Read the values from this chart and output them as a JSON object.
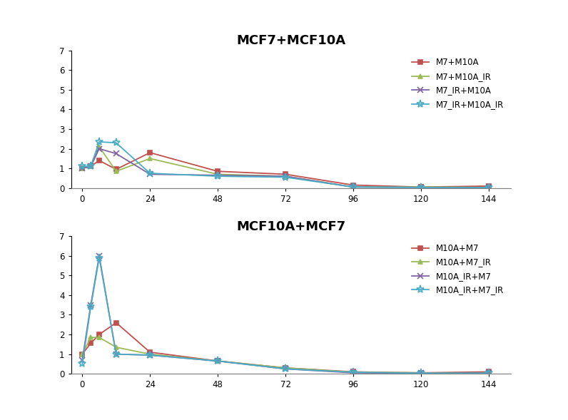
{
  "x": [
    0,
    3,
    6,
    12,
    24,
    48,
    72,
    96,
    120,
    144
  ],
  "top_title": "MCF7+MCF10A",
  "bottom_title": "MCF10A+MCF7",
  "top": {
    "M7+M10A": [
      1.0,
      1.1,
      1.4,
      0.95,
      1.8,
      0.85,
      0.7,
      0.15,
      0.05,
      0.1
    ],
    "M7+M10A_IR": [
      1.0,
      1.1,
      2.1,
      0.85,
      1.5,
      0.7,
      0.6,
      0.05,
      0.05,
      0.03
    ],
    "M7_IR+M10A": [
      1.0,
      1.1,
      2.0,
      1.75,
      0.7,
      0.65,
      0.6,
      0.05,
      0.03,
      0.02
    ],
    "M7_IR+M10A_IR": [
      1.1,
      1.1,
      2.35,
      2.3,
      0.75,
      0.6,
      0.55,
      0.05,
      0.03,
      0.02
    ]
  },
  "bottom": {
    "M10A+M7": [
      1.0,
      1.55,
      2.0,
      2.6,
      1.1,
      0.65,
      0.3,
      0.1,
      0.05,
      0.1
    ],
    "M10A+M7_IR": [
      1.0,
      1.85,
      1.85,
      1.35,
      1.0,
      0.65,
      0.3,
      0.08,
      0.05,
      0.03
    ],
    "M10A_IR+M7": [
      0.7,
      3.5,
      6.0,
      1.0,
      0.95,
      0.65,
      0.25,
      0.05,
      0.03,
      0.03
    ],
    "M10A_IR+M7_IR": [
      0.5,
      3.4,
      5.9,
      1.0,
      0.95,
      0.65,
      0.25,
      0.08,
      0.03,
      0.03
    ]
  },
  "colors": {
    "red": "#C0504D",
    "green": "#9BBB59",
    "purple": "#8064A2",
    "cyan": "#4BACC6"
  },
  "top_series_colors": [
    "red",
    "green",
    "purple",
    "cyan"
  ],
  "bottom_series_colors": [
    "red",
    "green",
    "purple",
    "cyan"
  ],
  "ylim": [
    0.0,
    7.0
  ],
  "yticks": [
    0.0,
    1.0,
    2.0,
    3.0,
    4.0,
    5.0,
    6.0,
    7.0
  ],
  "xticks": [
    0,
    24,
    48,
    72,
    96,
    120,
    144
  ],
  "xlim": [
    -4,
    152
  ],
  "title_fontsize": 13,
  "legend_fontsize": 8.5,
  "tick_fontsize": 8.5,
  "linewidth": 1.3
}
